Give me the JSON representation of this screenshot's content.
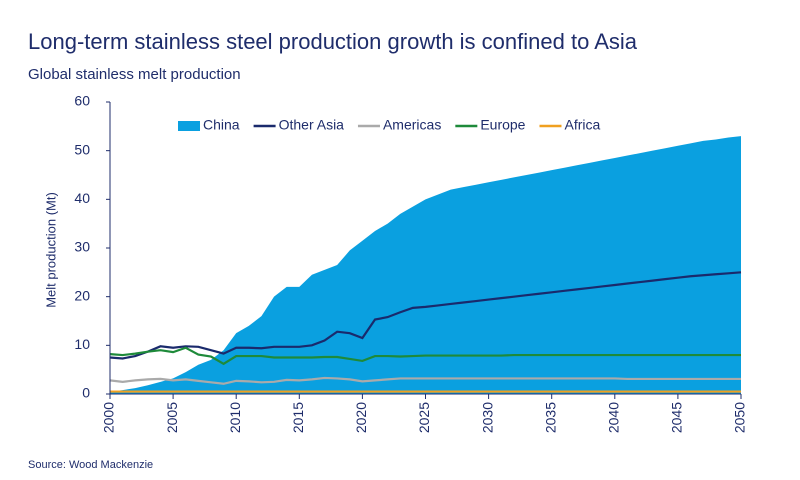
{
  "chart_data": {
    "type": "area-line",
    "title": "Long-term stainless steel production growth is confined to Asia",
    "subtitle": "Global stainless melt production",
    "y_label": "Melt production (Mt)",
    "source": "Source: Wood Mackenzie",
    "x": [
      2000,
      2001,
      2002,
      2003,
      2004,
      2005,
      2006,
      2007,
      2008,
      2009,
      2010,
      2011,
      2012,
      2013,
      2014,
      2015,
      2016,
      2017,
      2018,
      2019,
      2020,
      2021,
      2022,
      2023,
      2024,
      2025,
      2026,
      2027,
      2028,
      2029,
      2030,
      2031,
      2032,
      2033,
      2034,
      2035,
      2036,
      2037,
      2038,
      2039,
      2040,
      2041,
      2042,
      2043,
      2044,
      2045,
      2046,
      2047,
      2048,
      2049,
      2050
    ],
    "xlim": [
      2000,
      2050
    ],
    "xticks": [
      2000,
      2005,
      2010,
      2015,
      2020,
      2025,
      2030,
      2035,
      2040,
      2045,
      2050
    ],
    "ylim": [
      0,
      60
    ],
    "yticks": [
      0,
      10,
      20,
      30,
      40,
      50,
      60
    ],
    "series": [
      {
        "name": "China",
        "kind": "area",
        "color": "#0aa0e0",
        "values": [
          0.5,
          0.8,
          1.2,
          1.8,
          2.5,
          3.2,
          4.5,
          6,
          7,
          9,
          12.5,
          14,
          16,
          20,
          22,
          22,
          24.5,
          25.5,
          26.5,
          29.5,
          31.5,
          33.5,
          35,
          37,
          38.5,
          40,
          41,
          42,
          42.5,
          43,
          43.5,
          44,
          44.5,
          45,
          45.5,
          46,
          46.5,
          47,
          47.5,
          48,
          48.5,
          49,
          49.5,
          50,
          50.5,
          51,
          51.5,
          52,
          52.3,
          52.7,
          53
        ]
      },
      {
        "name": "Other Asia",
        "kind": "line",
        "color": "#1a2a6c",
        "values": [
          7.5,
          7.3,
          7.8,
          8.7,
          9.8,
          9.5,
          9.8,
          9.7,
          9,
          8.3,
          9.5,
          9.5,
          9.4,
          9.7,
          9.7,
          9.7,
          10,
          11,
          12.8,
          12.5,
          11.5,
          15.3,
          15.8,
          16.8,
          17.7,
          17.9,
          18.2,
          18.5,
          18.8,
          19.1,
          19.4,
          19.7,
          20,
          20.3,
          20.6,
          20.9,
          21.2,
          21.5,
          21.8,
          22.1,
          22.4,
          22.7,
          23,
          23.3,
          23.6,
          23.9,
          24.2,
          24.4,
          24.6,
          24.8,
          25
        ]
      },
      {
        "name": "Americas",
        "kind": "line",
        "color": "#aaaaaa",
        "values": [
          2.8,
          2.5,
          2.8,
          3,
          3.1,
          2.8,
          3,
          2.7,
          2.4,
          2.1,
          2.7,
          2.6,
          2.4,
          2.5,
          2.9,
          2.8,
          3,
          3.3,
          3.2,
          3,
          2.6,
          2.8,
          3,
          3.2,
          3.2,
          3.2,
          3.2,
          3.2,
          3.2,
          3.2,
          3.2,
          3.2,
          3.2,
          3.2,
          3.2,
          3.2,
          3.2,
          3.2,
          3.2,
          3.2,
          3.2,
          3.1,
          3.1,
          3.1,
          3.1,
          3.1,
          3.1,
          3.1,
          3.1,
          3.1,
          3.1
        ]
      },
      {
        "name": "Europe",
        "kind": "line",
        "color": "#1e8a3a",
        "values": [
          8.2,
          8,
          8.3,
          8.7,
          9,
          8.6,
          9.5,
          8.1,
          7.7,
          6.2,
          7.8,
          7.8,
          7.8,
          7.5,
          7.5,
          7.5,
          7.5,
          7.6,
          7.6,
          7.2,
          6.8,
          7.8,
          7.8,
          7.7,
          7.8,
          7.9,
          7.9,
          7.9,
          7.9,
          7.9,
          7.9,
          7.9,
          8,
          8,
          8,
          8,
          8,
          8,
          8,
          8,
          8,
          8,
          8,
          8,
          8,
          8,
          8,
          8,
          8,
          8,
          8
        ]
      },
      {
        "name": "Africa",
        "kind": "line",
        "color": "#f0a020",
        "values": [
          0.5,
          0.5,
          0.5,
          0.5,
          0.5,
          0.5,
          0.5,
          0.5,
          0.5,
          0.5,
          0.5,
          0.5,
          0.5,
          0.5,
          0.5,
          0.5,
          0.5,
          0.5,
          0.5,
          0.5,
          0.5,
          0.5,
          0.5,
          0.5,
          0.5,
          0.5,
          0.5,
          0.5,
          0.5,
          0.5,
          0.5,
          0.5,
          0.5,
          0.5,
          0.5,
          0.5,
          0.5,
          0.5,
          0.5,
          0.5,
          0.5,
          0.5,
          0.5,
          0.5,
          0.5,
          0.5,
          0.5,
          0.5,
          0.5,
          0.5,
          0.5
        ]
      }
    ]
  }
}
